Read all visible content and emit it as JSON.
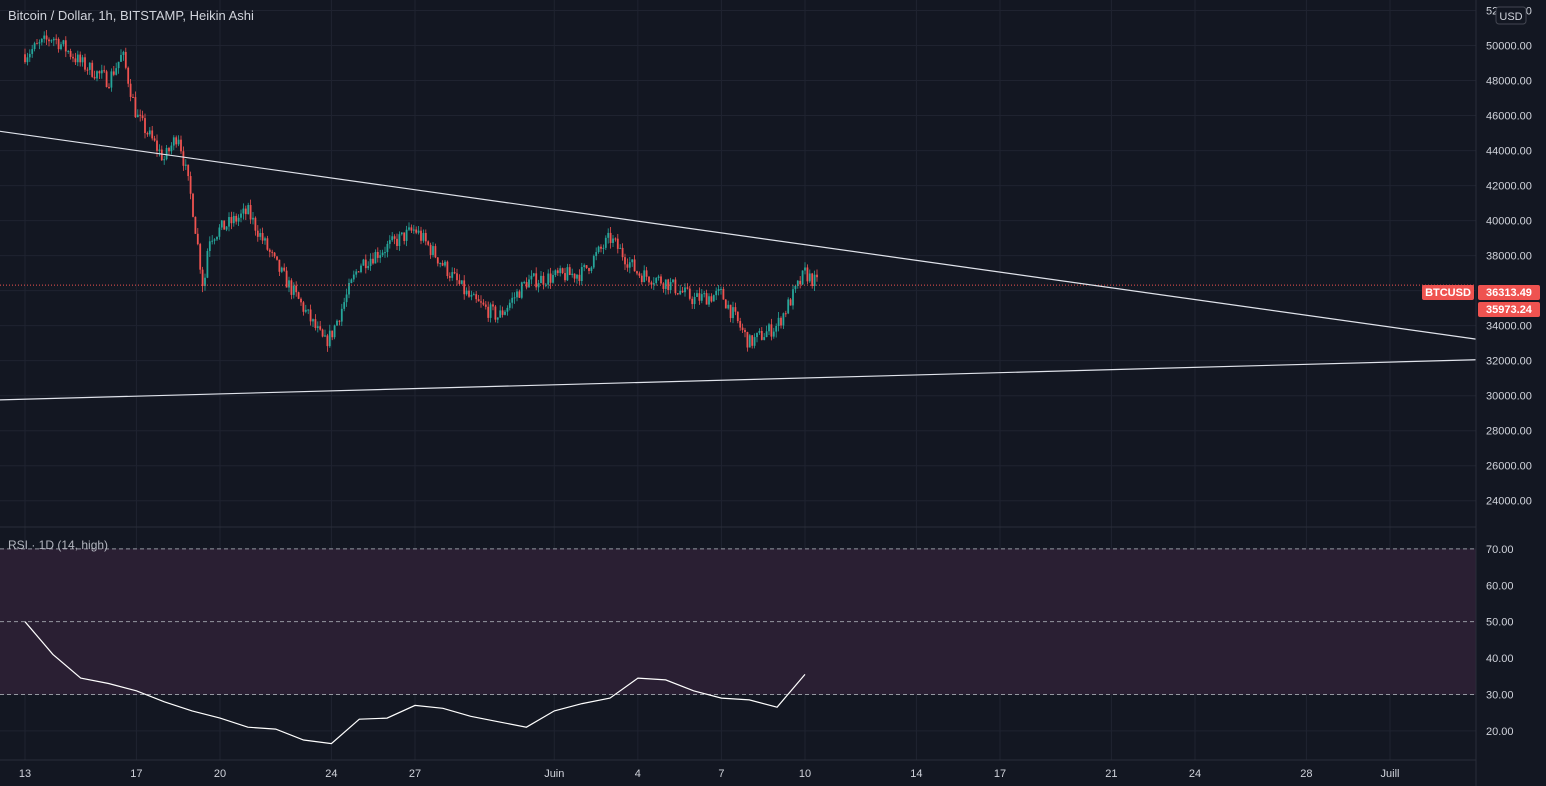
{
  "header": {
    "title": "Bitcoin / Dollar, 1h, BITSTAMP, Heikin Ashi"
  },
  "currency_button": "USD",
  "colors": {
    "background": "#131722",
    "grid": "#1f2330",
    "up": "#26a69a",
    "down": "#ef5350",
    "trendline": "#e0e3eb",
    "price_label_bg": "#ef5350",
    "rsi_band": "#2a1f33",
    "rsi_line": "#ffffff"
  },
  "price_labels": {
    "symbol": "BTCUSD",
    "last": "36313.49",
    "secondary": "35973.24"
  },
  "chart_data": {
    "type": "candlestick",
    "title": "Bitcoin / Dollar, 1h, BITSTAMP, Heikin Ashi",
    "x_axis": {
      "range": [
        "2021-05-13",
        "2021-07-04"
      ],
      "ticks": [
        {
          "label": "13",
          "date": "2021-05-13"
        },
        {
          "label": "17",
          "date": "2021-05-17"
        },
        {
          "label": "20",
          "date": "2021-05-20"
        },
        {
          "label": "24",
          "date": "2021-05-24"
        },
        {
          "label": "27",
          "date": "2021-05-27"
        },
        {
          "label": "Juin",
          "date": "2021-06-01"
        },
        {
          "label": "4",
          "date": "2021-06-04"
        },
        {
          "label": "7",
          "date": "2021-06-07"
        },
        {
          "label": "10",
          "date": "2021-06-10"
        },
        {
          "label": "14",
          "date": "2021-06-14"
        },
        {
          "label": "17",
          "date": "2021-06-17"
        },
        {
          "label": "21",
          "date": "2021-06-21"
        },
        {
          "label": "24",
          "date": "2021-06-24"
        },
        {
          "label": "28",
          "date": "2021-06-28"
        },
        {
          "label": "Juill",
          "date": "2021-07-01"
        }
      ]
    },
    "y_axis": {
      "range": [
        22500,
        52600
      ],
      "ticks": [
        "52000.00",
        "50000.00",
        "48000.00",
        "46000.00",
        "44000.00",
        "42000.00",
        "40000.00",
        "38000.00",
        "36000.00",
        "34000.00",
        "32000.00",
        "30000.00",
        "28000.00",
        "26000.00",
        "24000.00"
      ]
    },
    "price_path": [
      {
        "date": "2021-05-13",
        "price": 49500
      },
      {
        "date": "2021-05-14",
        "price": 50500
      },
      {
        "date": "2021-05-15",
        "price": 49000
      },
      {
        "date": "2021-05-16",
        "price": 48000
      },
      {
        "date": "2021-05-16T12",
        "price": 49500
      },
      {
        "date": "2021-05-17",
        "price": 46000
      },
      {
        "date": "2021-05-18",
        "price": 43500
      },
      {
        "date": "2021-05-18T12",
        "price": 45000
      },
      {
        "date": "2021-05-19",
        "price": 41000
      },
      {
        "date": "2021-05-19T10",
        "price": 36000
      },
      {
        "date": "2021-05-19T14",
        "price": 39000
      },
      {
        "date": "2021-05-20",
        "price": 39500
      },
      {
        "date": "2021-05-21",
        "price": 40500
      },
      {
        "date": "2021-05-22",
        "price": 37500
      },
      {
        "date": "2021-05-23",
        "price": 35000
      },
      {
        "date": "2021-05-23T18",
        "price": 33000
      },
      {
        "date": "2021-05-24",
        "price": 33500
      },
      {
        "date": "2021-05-25",
        "price": 37500
      },
      {
        "date": "2021-05-26",
        "price": 38500
      },
      {
        "date": "2021-05-27",
        "price": 39500
      },
      {
        "date": "2021-05-28",
        "price": 37500
      },
      {
        "date": "2021-05-29",
        "price": 35500
      },
      {
        "date": "2021-05-30",
        "price": 34500
      },
      {
        "date": "2021-05-31",
        "price": 36500
      },
      {
        "date": "2021-06-01",
        "price": 36800
      },
      {
        "date": "2021-06-02",
        "price": 37000
      },
      {
        "date": "2021-06-03",
        "price": 39000
      },
      {
        "date": "2021-06-04",
        "price": 37000
      },
      {
        "date": "2021-06-05",
        "price": 36500
      },
      {
        "date": "2021-06-06",
        "price": 35500
      },
      {
        "date": "2021-06-07",
        "price": 35800
      },
      {
        "date": "2021-06-08",
        "price": 33000
      },
      {
        "date": "2021-06-09",
        "price": 34000
      },
      {
        "date": "2021-06-10",
        "price": 37000
      },
      {
        "date": "2021-06-10T12",
        "price": 36300
      }
    ],
    "trendlines": [
      {
        "name": "upper",
        "from": {
          "date": "2021-05-13",
          "price": 44900
        },
        "to": {
          "date": "2021-07-04",
          "price": 33250
        }
      },
      {
        "name": "lower",
        "from": {
          "date": "2021-05-13",
          "price": 29800
        },
        "to": {
          "date": "2021-07-04",
          "price": 32050
        }
      }
    ],
    "last_price": 36313.49
  },
  "rsi": {
    "label": "RSI · 1D (14, high)",
    "y_axis": {
      "range": [
        12,
        76
      ],
      "ticks": [
        "70.00",
        "60.00",
        "50.00",
        "40.00",
        "30.00",
        "20.00"
      ]
    },
    "band": [
      30,
      70
    ],
    "levels": [
      70,
      50,
      30
    ],
    "values": [
      {
        "date": "2021-05-13",
        "rsi": 50
      },
      {
        "date": "2021-05-14",
        "rsi": 41
      },
      {
        "date": "2021-05-15",
        "rsi": 34.5
      },
      {
        "date": "2021-05-16",
        "rsi": 33
      },
      {
        "date": "2021-05-17",
        "rsi": 31
      },
      {
        "date": "2021-05-18",
        "rsi": 28
      },
      {
        "date": "2021-05-19",
        "rsi": 25.5
      },
      {
        "date": "2021-05-20",
        "rsi": 23.5
      },
      {
        "date": "2021-05-21",
        "rsi": 21
      },
      {
        "date": "2021-05-22",
        "rsi": 20.5
      },
      {
        "date": "2021-05-23",
        "rsi": 17.5
      },
      {
        "date": "2021-05-24",
        "rsi": 16.5
      },
      {
        "date": "2021-05-25",
        "rsi": 23.2
      },
      {
        "date": "2021-05-26",
        "rsi": 23.5
      },
      {
        "date": "2021-05-27",
        "rsi": 27
      },
      {
        "date": "2021-05-28",
        "rsi": 26.2
      },
      {
        "date": "2021-05-29",
        "rsi": 24
      },
      {
        "date": "2021-05-30",
        "rsi": 22.5
      },
      {
        "date": "2021-05-31",
        "rsi": 21
      },
      {
        "date": "2021-06-01",
        "rsi": 25.5
      },
      {
        "date": "2021-06-02",
        "rsi": 27.5
      },
      {
        "date": "2021-06-03",
        "rsi": 29
      },
      {
        "date": "2021-06-04",
        "rsi": 34.5
      },
      {
        "date": "2021-06-05",
        "rsi": 34
      },
      {
        "date": "2021-06-06",
        "rsi": 31
      },
      {
        "date": "2021-06-07",
        "rsi": 29
      },
      {
        "date": "2021-06-08",
        "rsi": 28.5
      },
      {
        "date": "2021-06-09",
        "rsi": 26.5
      },
      {
        "date": "2021-06-10",
        "rsi": 35.5
      }
    ]
  }
}
